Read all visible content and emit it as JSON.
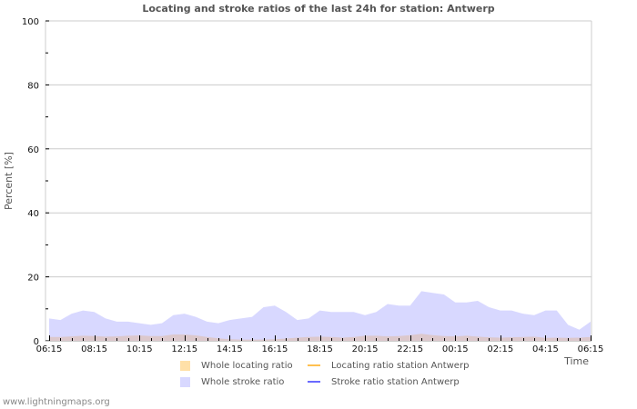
{
  "title": "Locating and stroke ratios of the last 24h for station: Antwerp",
  "footer": "www.lightningmaps.org",
  "y_axis": {
    "label": "Percent   [%]",
    "ticks": [
      "0",
      "20",
      "40",
      "60",
      "80",
      "100"
    ]
  },
  "x_axis": {
    "label": "Time",
    "ticks": [
      "06:15",
      "08:15",
      "10:15",
      "12:15",
      "14:15",
      "16:15",
      "18:15",
      "20:15",
      "22:15",
      "00:15",
      "02:15",
      "04:15",
      "06:15"
    ]
  },
  "legend": {
    "whole_locating": "Whole locating ratio",
    "whole_stroke": "Whole stroke ratio",
    "locating_station": "Locating ratio station Antwerp",
    "stroke_station": "Stroke ratio station Antwerp"
  },
  "colors": {
    "whole_locating": "#ffe0a8",
    "whole_stroke": "#d8d8ff",
    "overlap": "#dcc8cc",
    "locating_station_line": "#ffc050",
    "stroke_station_line": "#6a6aff",
    "grid": "#cccccc"
  },
  "chart_data": {
    "type": "area",
    "title": "Locating and stroke ratios of the last 24h for station: Antwerp",
    "xlabel": "Time",
    "ylabel": "Percent [%]",
    "ylim": [
      0,
      100
    ],
    "grid": true,
    "legend_position": "bottom",
    "x_ticks": [
      "06:15",
      "08:15",
      "10:15",
      "12:15",
      "14:15",
      "16:15",
      "18:15",
      "20:15",
      "22:15",
      "00:15",
      "02:15",
      "04:15",
      "06:15"
    ],
    "x_hours": [
      0,
      0.5,
      1,
      1.5,
      2,
      2.5,
      3,
      3.5,
      4,
      4.5,
      5,
      5.5,
      6,
      6.5,
      7,
      7.5,
      8,
      8.5,
      9,
      9.5,
      10,
      10.5,
      11,
      11.5,
      12,
      12.5,
      13,
      13.5,
      14,
      14.5,
      15,
      15.5,
      16,
      16.5,
      17,
      17.5,
      18,
      18.5,
      19,
      19.5,
      20,
      20.5,
      21,
      21.5,
      22,
      22.5,
      23,
      23.5,
      24
    ],
    "series": [
      {
        "name": "Whole stroke ratio",
        "values": [
          7,
          6.5,
          8.5,
          9.5,
          9,
          7,
          6,
          6,
          5.5,
          5,
          5.5,
          8,
          8.5,
          7.5,
          6,
          5.5,
          6.5,
          7,
          7.5,
          10.5,
          11,
          9,
          6.5,
          7,
          9.5,
          9,
          9,
          9,
          8,
          9,
          11.5,
          11,
          11,
          15.5,
          15,
          14.5,
          12,
          12,
          12.5,
          10.5,
          9.5,
          9.5,
          8.5,
          8,
          9.5,
          9.5,
          5,
          3.5,
          6
        ]
      },
      {
        "name": "Whole locating ratio",
        "values": [
          1.2,
          1.2,
          1.4,
          1.6,
          1.5,
          1.3,
          1.4,
          1.6,
          1.7,
          1.5,
          1.5,
          2,
          2,
          1.7,
          1.2,
          0.8,
          0.5,
          0.4,
          0.4,
          0.4,
          0.5,
          0.7,
          1,
          1.2,
          1.3,
          1.2,
          1,
          1.2,
          1.6,
          1.6,
          1.4,
          1.5,
          1.8,
          2.2,
          1.8,
          1.5,
          1.4,
          1.6,
          1.3,
          1.1,
          1,
          1.1,
          1.2,
          1.3,
          0.9,
          1,
          0.9,
          1,
          1.2
        ]
      },
      {
        "name": "Locating ratio station Antwerp",
        "values": []
      },
      {
        "name": "Stroke ratio station Antwerp",
        "values": []
      }
    ]
  }
}
